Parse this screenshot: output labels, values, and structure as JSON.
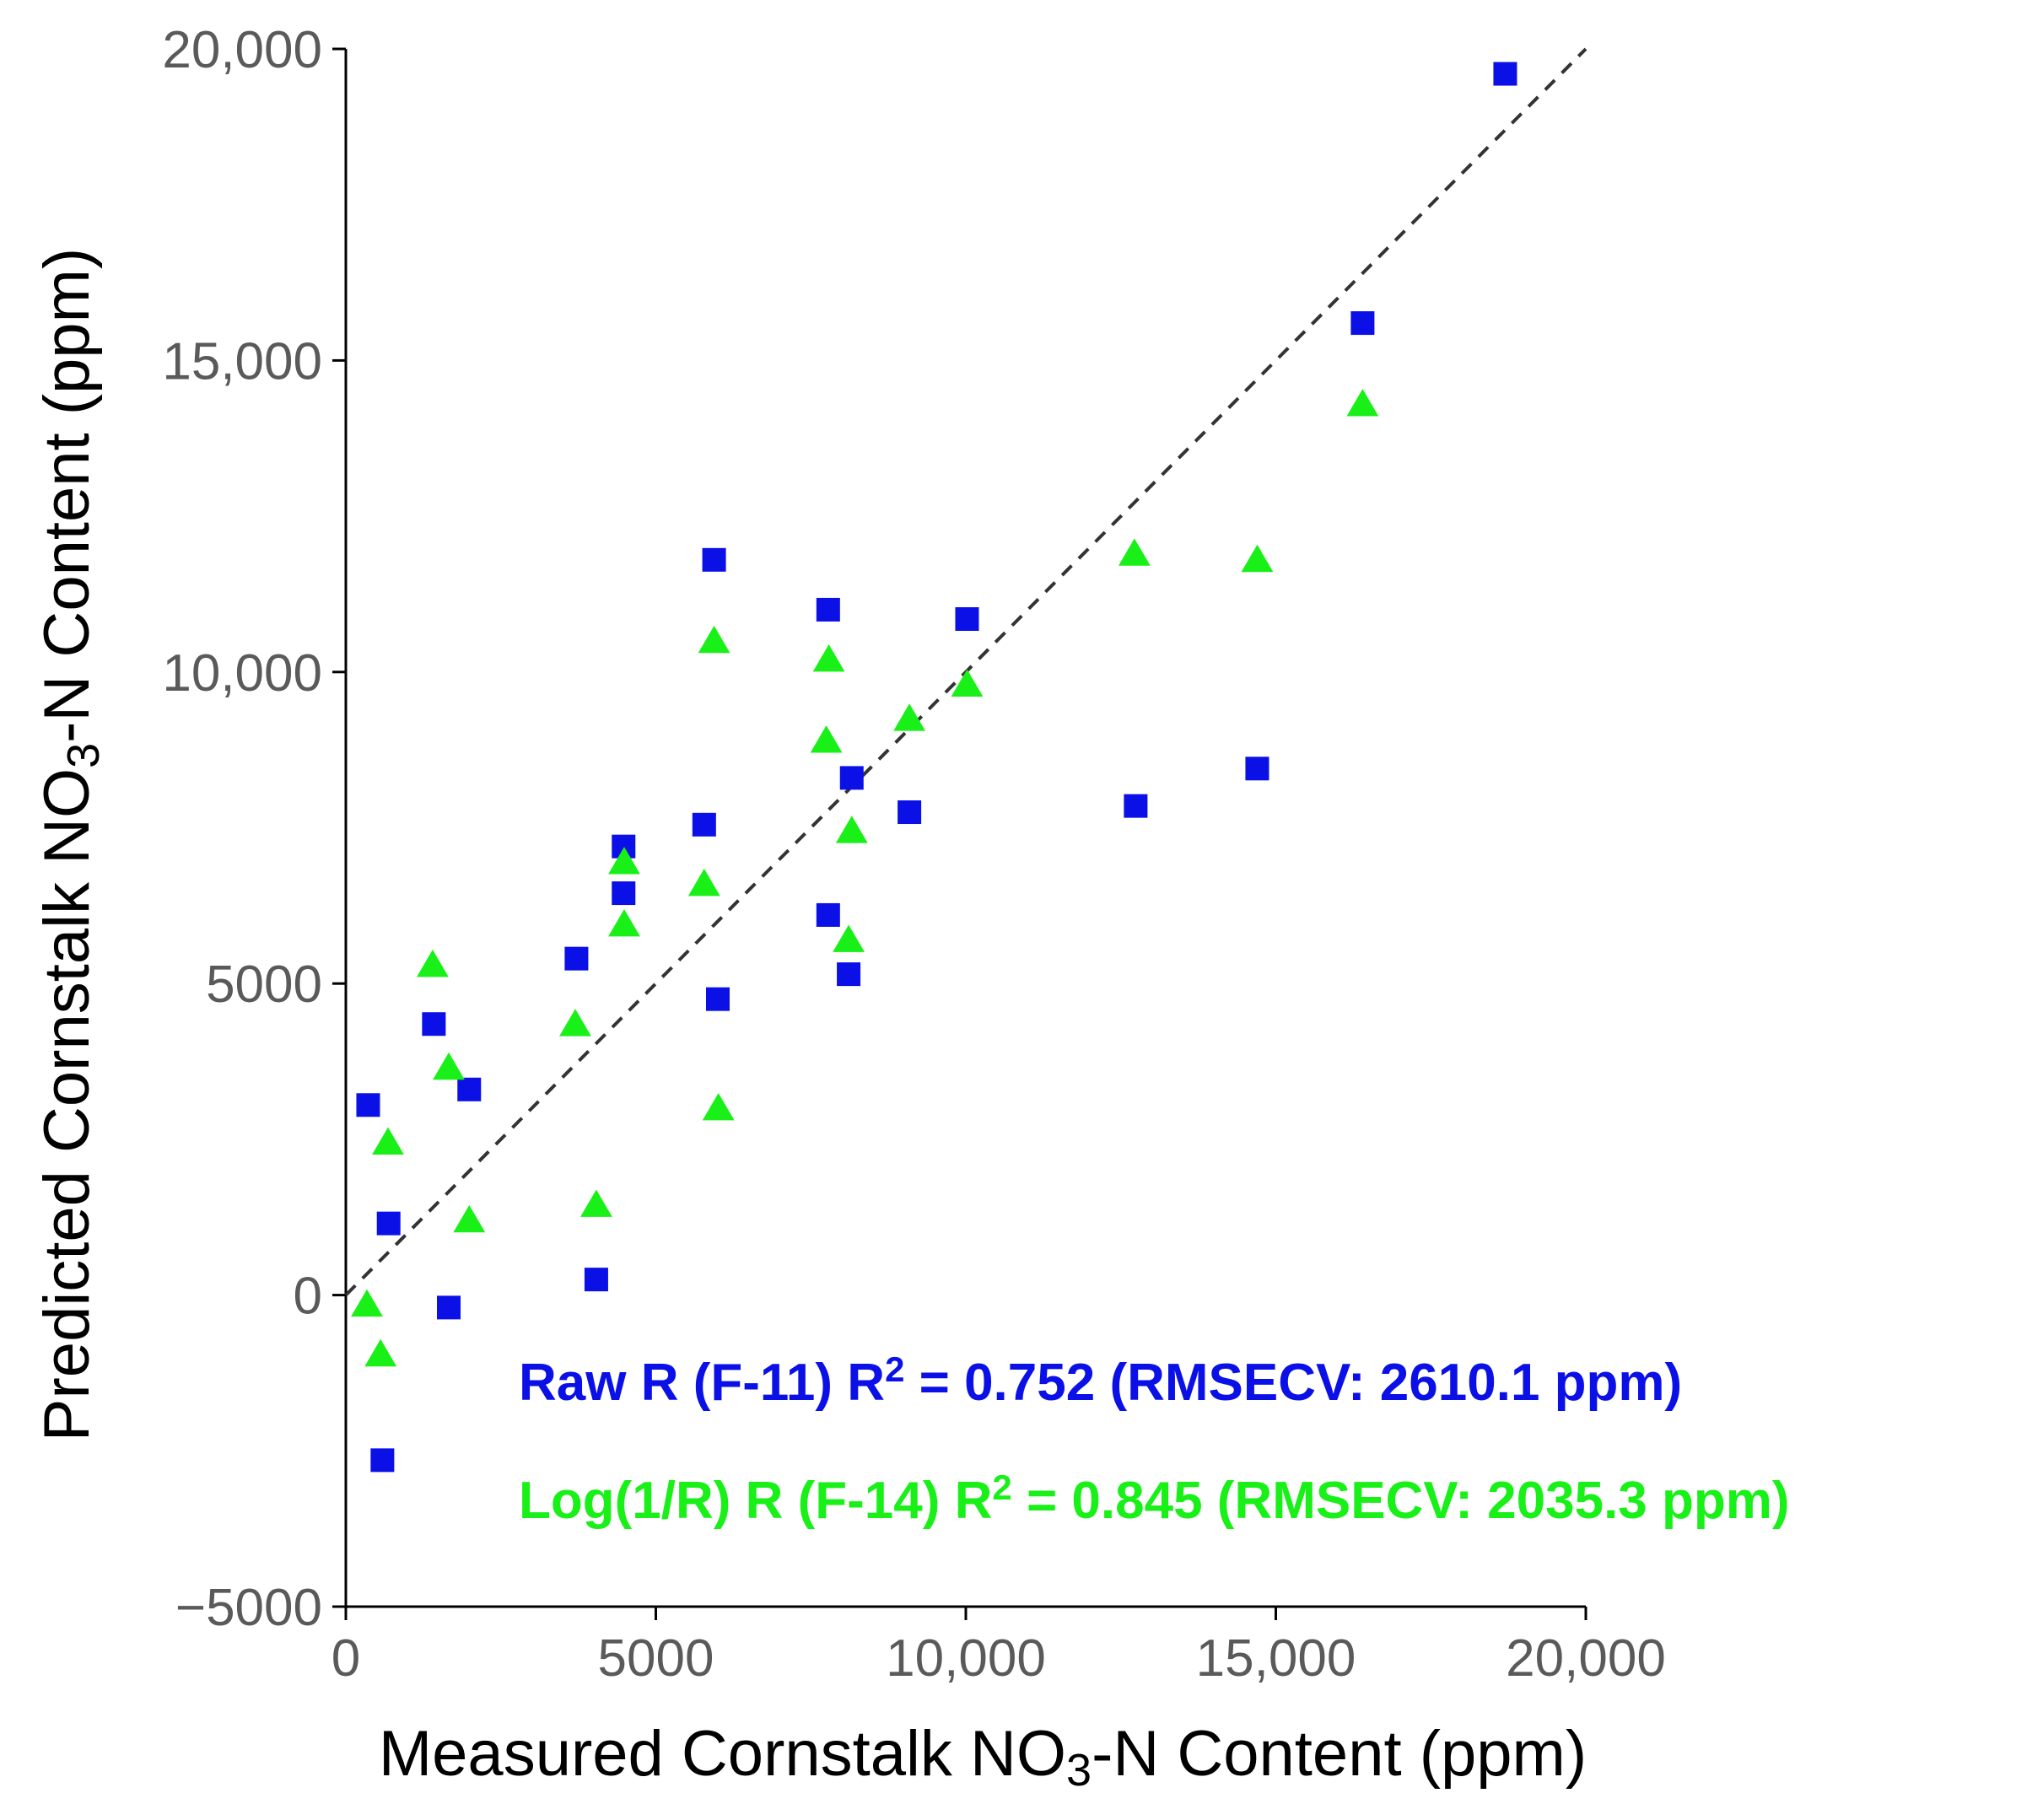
{
  "chart_data": {
    "type": "scatter",
    "title": "",
    "xlabel_parts": [
      "Measured Cornstalk NO",
      "3",
      "-N Content (ppm)"
    ],
    "ylabel_parts": [
      "Predicted Cornstalk NO",
      "3",
      "-N Content  (ppm)"
    ],
    "xlim": [
      0,
      20000
    ],
    "ylim": [
      -5000,
      20000
    ],
    "x_ticks": [
      0,
      5000,
      10000,
      15000,
      20000
    ],
    "x_tick_labels": [
      "0",
      "5000",
      "10,000",
      "15,000",
      "20,000"
    ],
    "y_ticks": [
      -5000,
      0,
      5000,
      10000,
      15000,
      20000
    ],
    "y_tick_labels": [
      "−5000",
      "0",
      "5000",
      "10,000",
      "15,000",
      "20,000"
    ],
    "grid": false,
    "reference_line": {
      "type": "y=x",
      "style": "dashed",
      "color": "#333333"
    },
    "series": [
      {
        "name": "Raw R (F-11)",
        "marker": "square",
        "color": "#0a10e6",
        "points": [
          [
            360,
            3050
          ],
          [
            690,
            1150
          ],
          [
            590,
            -2650
          ],
          [
            1420,
            4350
          ],
          [
            1660,
            -200
          ],
          [
            1990,
            3300
          ],
          [
            3720,
            5400
          ],
          [
            4040,
            250
          ],
          [
            4480,
            7200
          ],
          [
            4480,
            6450
          ],
          [
            5780,
            7550
          ],
          [
            5940,
            11800
          ],
          [
            6000,
            4750
          ],
          [
            7780,
            11000
          ],
          [
            7780,
            6100
          ],
          [
            8110,
            5150
          ],
          [
            8160,
            8300
          ],
          [
            9090,
            7750
          ],
          [
            10020,
            10850
          ],
          [
            12740,
            7850
          ],
          [
            14700,
            8450
          ],
          [
            16400,
            15600
          ],
          [
            18700,
            19600
          ]
        ]
      },
      {
        "name": "Log(1/R) R (F-14)",
        "marker": "triangle",
        "color": "#18f018",
        "points": [
          [
            340,
            -150
          ],
          [
            560,
            -950
          ],
          [
            680,
            2450
          ],
          [
            1400,
            5300
          ],
          [
            1660,
            3650
          ],
          [
            1990,
            1200
          ],
          [
            3700,
            4350
          ],
          [
            4040,
            1450
          ],
          [
            4490,
            6950
          ],
          [
            4490,
            5950
          ],
          [
            5780,
            6600
          ],
          [
            5940,
            10500
          ],
          [
            6010,
            3000
          ],
          [
            7750,
            8900
          ],
          [
            7790,
            10200
          ],
          [
            8110,
            5700
          ],
          [
            8160,
            7450
          ],
          [
            9090,
            9250
          ],
          [
            10020,
            9800
          ],
          [
            12720,
            11900
          ],
          [
            14700,
            11800
          ],
          [
            16400,
            14300
          ]
        ]
      }
    ],
    "annotations": [
      {
        "prefix": "Raw R (F-11) R",
        "sup": "2",
        "suffix": " = 0.752 (RMSECV: 2610.1 ppm)",
        "color": "#0a10e6"
      },
      {
        "prefix": "Log(1/R) R (F-14) R",
        "sup": "2",
        "suffix": " = 0.845 (RMSECV: 2035.3 ppm)",
        "color": "#18f018"
      }
    ]
  }
}
